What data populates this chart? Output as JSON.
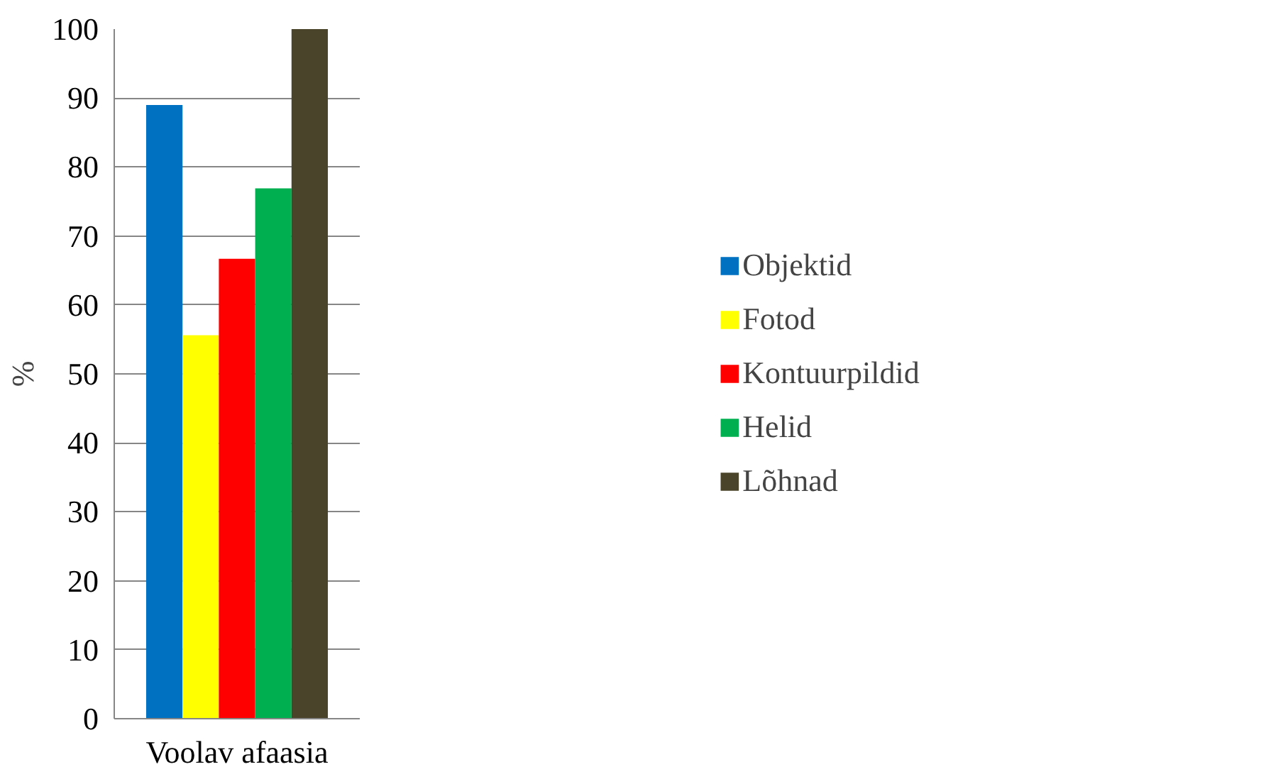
{
  "chart_data": {
    "type": "bar",
    "categories": [
      "Voolav afaasia"
    ],
    "ylabel": "%",
    "series": [
      {
        "name": "Objektid",
        "color": "#0070c0",
        "values": [
          89
        ]
      },
      {
        "name": "Fotod",
        "color": "#ffff00",
        "values": [
          55.6
        ]
      },
      {
        "name": "Kontuurpildid",
        "color": "#ff0000",
        "values": [
          66.7
        ]
      },
      {
        "name": "Helid",
        "color": "#00b050",
        "values": [
          76.9
        ]
      },
      {
        "name": "Lõhnad",
        "color": "#4a452a",
        "values": [
          100
        ]
      }
    ],
    "ylim": [
      0,
      100
    ],
    "yticks": [
      0,
      10,
      20,
      30,
      40,
      50,
      60,
      70,
      80,
      90,
      100
    ],
    "grid": "y",
    "legend": "right"
  }
}
